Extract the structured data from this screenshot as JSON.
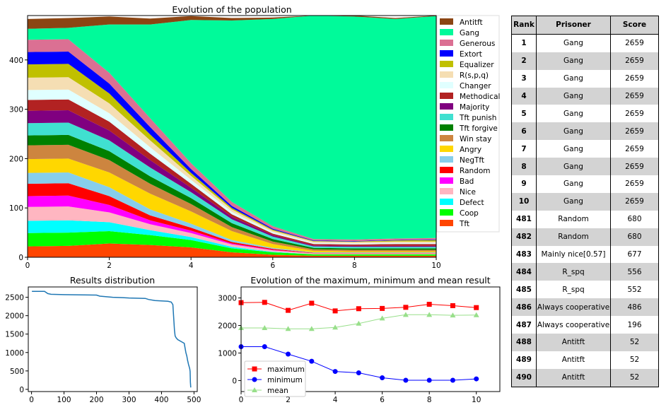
{
  "chart_data": [
    {
      "type": "area",
      "title": "Evolution of the population",
      "x": [
        0,
        1,
        2,
        3,
        4,
        5,
        6,
        7,
        8,
        9,
        10
      ],
      "xlim": [
        0,
        10
      ],
      "ylim": [
        0,
        490
      ],
      "xticks": [
        0,
        2,
        4,
        6,
        8,
        10
      ],
      "yticks": [
        0,
        100,
        200,
        300,
        400
      ],
      "legend": "outside-right",
      "stack_order": [
        "Tft",
        "Coop",
        "Defect",
        "Nice",
        "Bad",
        "Random",
        "NegTft",
        "Angry",
        "Win stay",
        "Tft forgive",
        "Tft punish",
        "Majority",
        "Methodical",
        "Changer",
        "R(s,p,q)",
        "Equalizer",
        "Extort",
        "Generous",
        "Gang",
        "Antitft"
      ],
      "series": [
        {
          "name": "Antitft",
          "color": "#8b4513",
          "values": [
            20,
            20,
            16,
            12,
            8,
            5,
            3,
            2,
            2,
            2,
            1
          ]
        },
        {
          "name": "Gang",
          "color": "#00fa9a",
          "values": [
            22,
            23,
            98,
            190,
            290,
            368,
            420,
            455,
            452,
            445,
            450
          ]
        },
        {
          "name": "Generous",
          "color": "#db7093",
          "values": [
            25,
            25,
            22,
            18,
            12,
            8,
            5,
            3,
            3,
            3,
            3
          ]
        },
        {
          "name": "Extort",
          "color": "#0000ff",
          "values": [
            25,
            25,
            20,
            15,
            8,
            4,
            2,
            1,
            1,
            1,
            1
          ]
        },
        {
          "name": "Equalizer",
          "color": "#c0c000",
          "values": [
            27,
            27,
            20,
            12,
            6,
            3,
            2,
            1,
            1,
            2,
            3
          ]
        },
        {
          "name": "R(s,p,q)",
          "color": "#f5deb3",
          "values": [
            25,
            25,
            20,
            14,
            8,
            5,
            3,
            3,
            3,
            3,
            3
          ]
        },
        {
          "name": "Changer",
          "color": "#e0ffff",
          "values": [
            20,
            20,
            17,
            13,
            8,
            5,
            3,
            2,
            2,
            2,
            2
          ]
        },
        {
          "name": "Methodical",
          "color": "#b22222",
          "values": [
            22,
            22,
            18,
            13,
            8,
            5,
            3,
            3,
            3,
            4,
            4
          ]
        },
        {
          "name": "Majority",
          "color": "#800080",
          "values": [
            25,
            25,
            20,
            15,
            9,
            5,
            3,
            2,
            2,
            2,
            2
          ]
        },
        {
          "name": "Tft punish",
          "color": "#40e0d0",
          "values": [
            25,
            25,
            22,
            18,
            12,
            8,
            5,
            3,
            3,
            3,
            3
          ]
        },
        {
          "name": "Tft forgive",
          "color": "#008000",
          "values": [
            20,
            20,
            18,
            15,
            12,
            8,
            5,
            3,
            3,
            3,
            3
          ]
        },
        {
          "name": "Win stay",
          "color": "#cd853f",
          "values": [
            28,
            28,
            25,
            20,
            15,
            8,
            5,
            3,
            3,
            3,
            3
          ]
        },
        {
          "name": "Angry",
          "color": "#ffd700",
          "values": [
            28,
            28,
            30,
            32,
            25,
            18,
            8,
            3,
            2,
            2,
            2
          ]
        },
        {
          "name": "NegTft",
          "color": "#87ceeb",
          "values": [
            22,
            22,
            18,
            12,
            8,
            4,
            2,
            1,
            1,
            1,
            1
          ]
        },
        {
          "name": "Random",
          "color": "#ff0000",
          "values": [
            25,
            25,
            18,
            10,
            6,
            3,
            2,
            1,
            1,
            1,
            1
          ]
        },
        {
          "name": "Bad",
          "color": "#ff00ff",
          "values": [
            22,
            22,
            15,
            8,
            5,
            2,
            1,
            0,
            0,
            0,
            0
          ]
        },
        {
          "name": "Nice",
          "color": "#ffb6c1",
          "values": [
            28,
            28,
            20,
            12,
            8,
            5,
            3,
            2,
            2,
            2,
            2
          ]
        },
        {
          "name": "Defect",
          "color": "#00ffff",
          "values": [
            25,
            25,
            18,
            10,
            6,
            3,
            1,
            0,
            0,
            0,
            0
          ]
        },
        {
          "name": "Coop",
          "color": "#00ff00",
          "values": [
            27,
            27,
            25,
            20,
            15,
            8,
            5,
            3,
            3,
            3,
            3
          ]
        },
        {
          "name": "Tft",
          "color": "#ff4500",
          "values": [
            22,
            23,
            28,
            25,
            20,
            10,
            5,
            3,
            3,
            3,
            3
          ]
        }
      ]
    },
    {
      "type": "line",
      "title": "Results distribution",
      "xlim": [
        -10,
        510
      ],
      "ylim": [
        -60,
        2780
      ],
      "xticks": [
        0,
        100,
        200,
        300,
        400,
        500
      ],
      "yticks": [
        0,
        500,
        1000,
        1500,
        2000,
        2500
      ],
      "color": "#1f77b4",
      "x": [
        1,
        40,
        50,
        60,
        100,
        200,
        210,
        250,
        280,
        300,
        350,
        360,
        380,
        400,
        420,
        430,
        435,
        440,
        442,
        445,
        450,
        460,
        470,
        475,
        478,
        480,
        483,
        485,
        487,
        488,
        489,
        490
      ],
      "y": [
        2659,
        2659,
        2600,
        2580,
        2570,
        2560,
        2530,
        2500,
        2490,
        2480,
        2470,
        2440,
        2410,
        2400,
        2390,
        2370,
        2300,
        1600,
        1450,
        1400,
        1350,
        1300,
        1250,
        1000,
        900,
        800,
        680,
        620,
        556,
        486,
        196,
        52
      ]
    },
    {
      "type": "line",
      "title": "Evolution of the maximum, minimum and mean result",
      "x": [
        0,
        1,
        2,
        3,
        4,
        5,
        6,
        7,
        8,
        9,
        10
      ],
      "xlim": [
        0,
        11
      ],
      "ylim": [
        -400,
        3400
      ],
      "xticks": [
        0,
        2,
        4,
        6,
        8,
        10
      ],
      "yticks": [
        0,
        1000,
        2000,
        3000
      ],
      "legend": "bottom-left",
      "series": [
        {
          "name": "maximum",
          "color": "#ff0000",
          "marker": "square",
          "values": [
            2830,
            2840,
            2550,
            2810,
            2530,
            2610,
            2620,
            2660,
            2770,
            2720,
            2650
          ]
        },
        {
          "name": "minimum",
          "color": "#0000ff",
          "marker": "circle",
          "values": [
            1230,
            1230,
            960,
            700,
            330,
            280,
            100,
            10,
            10,
            10,
            60
          ]
        },
        {
          "name": "mean",
          "color": "#98df8a",
          "marker": "triangle",
          "values": [
            1910,
            1910,
            1880,
            1880,
            1930,
            2070,
            2260,
            2390,
            2390,
            2370,
            2380
          ]
        }
      ]
    }
  ],
  "table": {
    "headers": [
      "Rank",
      "Prisoner",
      "Score"
    ],
    "rows": [
      {
        "rank": "1",
        "prisoner": "Gang",
        "score": "2659"
      },
      {
        "rank": "2",
        "prisoner": "Gang",
        "score": "2659"
      },
      {
        "rank": "3",
        "prisoner": "Gang",
        "score": "2659"
      },
      {
        "rank": "4",
        "prisoner": "Gang",
        "score": "2659"
      },
      {
        "rank": "5",
        "prisoner": "Gang",
        "score": "2659"
      },
      {
        "rank": "6",
        "prisoner": "Gang",
        "score": "2659"
      },
      {
        "rank": "7",
        "prisoner": "Gang",
        "score": "2659"
      },
      {
        "rank": "8",
        "prisoner": "Gang",
        "score": "2659"
      },
      {
        "rank": "9",
        "prisoner": "Gang",
        "score": "2659"
      },
      {
        "rank": "10",
        "prisoner": "Gang",
        "score": "2659"
      },
      {
        "rank": "481",
        "prisoner": "Random",
        "score": "680"
      },
      {
        "rank": "482",
        "prisoner": "Random",
        "score": "680"
      },
      {
        "rank": "483",
        "prisoner": "Mainly nice[0.57]",
        "score": "677"
      },
      {
        "rank": "484",
        "prisoner": "R_spq",
        "score": "556"
      },
      {
        "rank": "485",
        "prisoner": "R_spq",
        "score": "552"
      },
      {
        "rank": "486",
        "prisoner": "Always cooperative",
        "score": "486"
      },
      {
        "rank": "487",
        "prisoner": "Always cooperative",
        "score": "196"
      },
      {
        "rank": "488",
        "prisoner": "Antitft",
        "score": "52"
      },
      {
        "rank": "489",
        "prisoner": "Antitft",
        "score": "52"
      },
      {
        "rank": "490",
        "prisoner": "Antitft",
        "score": "52"
      }
    ]
  }
}
